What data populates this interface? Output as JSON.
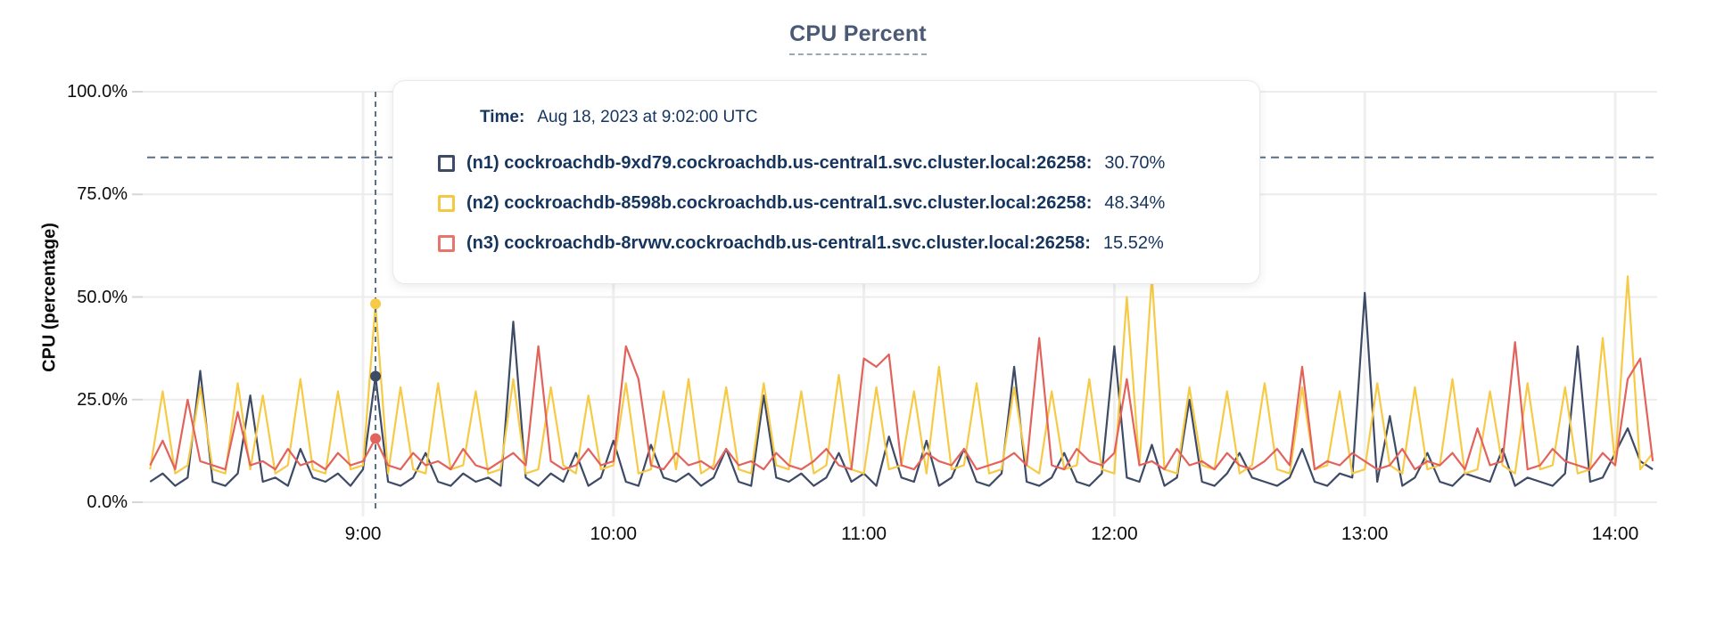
{
  "accent_colors": {
    "title": "#4a5a75",
    "tooltip_text": "#16355e",
    "grid": "#ececec",
    "dashed_guide": "#5a6e84"
  },
  "tooltip": {
    "time_prefix": "Time:",
    "time_label": "Aug 18, 2023 at 9:02:00 UTC"
  },
  "chart_data": {
    "type": "line",
    "title": "CPU Percent",
    "ylabel": "CPU (percentage)",
    "ylim": [
      0,
      100
    ],
    "grid": true,
    "threshold_pct": 84,
    "y_ticks": [
      {
        "value": 0,
        "label": "0.0%"
      },
      {
        "value": 25,
        "label": "25.0%"
      },
      {
        "value": 50,
        "label": "50.0%"
      },
      {
        "value": 75,
        "label": "75.0%"
      },
      {
        "value": 100,
        "label": "100.0%"
      }
    ],
    "x_ticks": [
      {
        "t": 9,
        "label": "9:00"
      },
      {
        "t": 10,
        "label": "10:00"
      },
      {
        "t": 11,
        "label": "11:00"
      },
      {
        "t": 12,
        "label": "12:00"
      },
      {
        "t": 13,
        "label": "13:00"
      },
      {
        "t": 14,
        "label": "14:00"
      }
    ],
    "t_start": 8.15,
    "t_step": 0.05,
    "hover": {
      "t": 9.05,
      "time_label": "Aug 18, 2023 at 9:02:00 UTC"
    },
    "series": [
      {
        "id": "n1",
        "label": "(n1) cockroachdb-9xd79.cockroachdb.us-central1.svc.cluster.local:26258:",
        "value_label": "30.70%",
        "hover_value": 30.7,
        "color": "#3e4b66",
        "swatch_color": "#3e4b66",
        "values": [
          5,
          7,
          4,
          6,
          32,
          5,
          4,
          7,
          26,
          5,
          6,
          4,
          13,
          6,
          5,
          7,
          4,
          8,
          30.7,
          5,
          4,
          6,
          12,
          5,
          4,
          7,
          5,
          6,
          4,
          44,
          6,
          4,
          7,
          5,
          12,
          4,
          6,
          15,
          5,
          4,
          14,
          6,
          5,
          7,
          4,
          6,
          13,
          5,
          4,
          26,
          6,
          5,
          7,
          4,
          6,
          12,
          5,
          7,
          4,
          16,
          6,
          5,
          15,
          4,
          6,
          13,
          5,
          4,
          7,
          33,
          5,
          4,
          6,
          12,
          5,
          4,
          7,
          38,
          6,
          5,
          14,
          4,
          6,
          25,
          5,
          4,
          7,
          12,
          6,
          5,
          4,
          6,
          13,
          5,
          4,
          7,
          6,
          51,
          5,
          21,
          4,
          6,
          12,
          5,
          4,
          7,
          6,
          5,
          13,
          4,
          6,
          5,
          4,
          7,
          38,
          5,
          6,
          12,
          18,
          10,
          8
        ]
      },
      {
        "id": "n2",
        "label": "(n2) cockroachdb-8598b.cockroachdb.us-central1.svc.cluster.local:26258:",
        "value_label": "48.34%",
        "hover_value": 48.34,
        "color": "#f7ca45",
        "swatch_color": "#f5c842",
        "values": [
          8,
          27,
          7,
          9,
          28,
          8,
          7,
          29,
          8,
          26,
          7,
          9,
          30,
          8,
          7,
          27,
          8,
          9,
          48.3,
          7,
          28,
          8,
          7,
          29,
          8,
          9,
          27,
          7,
          8,
          30,
          7,
          8,
          28,
          9,
          7,
          26,
          8,
          9,
          29,
          7,
          8,
          27,
          8,
          30,
          7,
          9,
          28,
          8,
          7,
          29,
          9,
          8,
          27,
          7,
          9,
          31,
          8,
          7,
          28,
          8,
          9,
          27,
          7,
          33,
          8,
          9,
          29,
          7,
          8,
          28,
          9,
          7,
          27,
          8,
          9,
          30,
          8,
          7,
          50,
          9,
          55,
          8,
          7,
          28,
          9,
          8,
          27,
          7,
          9,
          29,
          8,
          7,
          28,
          8,
          9,
          27,
          7,
          8,
          29,
          9,
          7,
          28,
          8,
          9,
          30,
          7,
          8,
          27,
          9,
          7,
          29,
          8,
          9,
          28,
          7,
          8,
          40,
          9,
          55,
          8,
          12
        ]
      },
      {
        "id": "n3",
        "label": "(n3) cockroachdb-8rvwv.cockroachdb.us-central1.svc.cluster.local:26258:",
        "value_label": "15.52%",
        "hover_value": 15.52,
        "color": "#e2625c",
        "swatch_color": "#e8756c",
        "values": [
          9,
          15,
          8,
          25,
          10,
          9,
          8,
          22,
          9,
          10,
          8,
          13,
          9,
          10,
          8,
          12,
          9,
          10,
          15.5,
          9,
          8,
          12,
          9,
          10,
          8,
          13,
          9,
          8,
          10,
          12,
          9,
          38,
          10,
          8,
          9,
          13,
          9,
          10,
          38,
          30,
          9,
          8,
          12,
          9,
          10,
          8,
          13,
          9,
          10,
          8,
          12,
          9,
          8,
          10,
          13,
          9,
          8,
          35,
          33,
          36,
          9,
          8,
          12,
          10,
          9,
          13,
          8,
          9,
          10,
          12,
          9,
          40,
          9,
          8,
          13,
          10,
          9,
          12,
          30,
          9,
          10,
          8,
          13,
          9,
          10,
          8,
          12,
          9,
          8,
          10,
          13,
          9,
          33,
          8,
          10,
          9,
          12,
          10,
          8,
          9,
          13,
          8,
          10,
          9,
          12,
          8,
          18,
          9,
          10,
          39,
          8,
          9,
          13,
          10,
          9,
          8,
          12,
          9,
          30,
          35,
          10
        ]
      }
    ]
  }
}
